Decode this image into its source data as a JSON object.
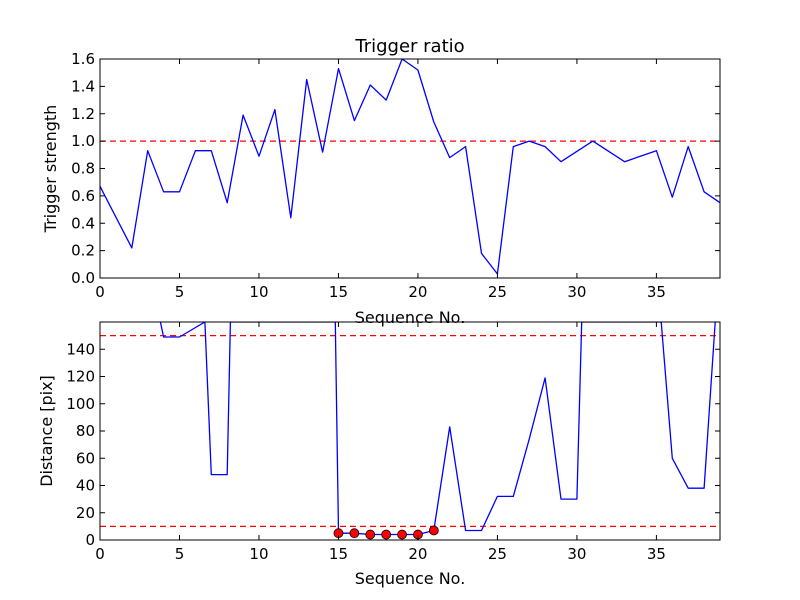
{
  "chart_data": [
    {
      "type": "line",
      "title": "Trigger ratio",
      "xlabel": "Sequence No.",
      "ylabel": "Trigger strength",
      "xlim": [
        0,
        39
      ],
      "ylim": [
        0.0,
        1.6
      ],
      "xticks": [
        0,
        5,
        10,
        15,
        20,
        25,
        30,
        35
      ],
      "xtick_labels": [
        "0",
        "5",
        "10",
        "15",
        "20",
        "25",
        "30",
        "35"
      ],
      "yticks": [
        0.0,
        0.2,
        0.4,
        0.6,
        0.8,
        1.0,
        1.2,
        1.4,
        1.6
      ],
      "ytick_labels": [
        "0.0",
        "0.2",
        "0.4",
        "0.6",
        "0.8",
        "1.0",
        "1.2",
        "1.4",
        "1.6"
      ],
      "series": [
        {
          "color": "#0000ff",
          "x": [
            0,
            2,
            3,
            4,
            5,
            6,
            7,
            8,
            9,
            10,
            11,
            12,
            13,
            14,
            15,
            16,
            17,
            18,
            19,
            20,
            21,
            22,
            23,
            24,
            25,
            26,
            27,
            28,
            29,
            31,
            33,
            35,
            36,
            37,
            38,
            39
          ],
          "y": [
            0.67,
            0.22,
            0.93,
            0.63,
            0.63,
            0.93,
            0.93,
            0.55,
            1.19,
            0.89,
            1.23,
            0.44,
            1.45,
            0.92,
            1.53,
            1.15,
            1.41,
            1.3,
            1.6,
            1.52,
            1.14,
            0.88,
            0.96,
            0.18,
            0.03,
            0.96,
            1.0,
            0.96,
            0.85,
            1.0,
            0.85,
            0.93,
            0.59,
            0.96,
            0.63,
            0.55
          ]
        }
      ],
      "reference_lines": [
        {
          "y": 1.0,
          "color": "#ff0000",
          "style": "dashed"
        }
      ]
    },
    {
      "type": "line",
      "title": "",
      "xlabel": "Sequence No.",
      "ylabel": "Distance [pix]",
      "xlim": [
        0,
        39
      ],
      "ylim": [
        0,
        160
      ],
      "xticks": [
        0,
        5,
        10,
        15,
        20,
        25,
        30,
        35
      ],
      "xtick_labels": [
        "0",
        "5",
        "10",
        "15",
        "20",
        "25",
        "30",
        "35"
      ],
      "yticks": [
        0,
        20,
        40,
        60,
        80,
        100,
        120,
        140
      ],
      "ytick_labels": [
        "0",
        "20",
        "40",
        "60",
        "80",
        "100",
        "120",
        "140"
      ],
      "series": [
        {
          "color": "#0000ff",
          "x": [
            3.8,
            4,
            5,
            6.6,
            7,
            8,
            8.2,
            14.8,
            15,
            16,
            17,
            18,
            19,
            20,
            21,
            22,
            23,
            24,
            25,
            26,
            27,
            28,
            29,
            30,
            30.3,
            35.3,
            36,
            37,
            38,
            38.7
          ],
          "y": [
            160,
            149,
            149,
            160,
            48,
            48,
            160,
            160,
            5,
            5,
            4,
            4,
            4,
            4,
            7,
            83,
            7,
            7,
            32,
            32,
            74,
            119,
            30,
            30,
            160,
            160,
            60,
            38,
            38,
            160
          ]
        },
        {
          "color": "#ff0000",
          "marker": "circle",
          "x": [
            15,
            16,
            17,
            18,
            19,
            20,
            21
          ],
          "y": [
            5,
            5,
            4,
            4,
            4,
            4,
            7
          ]
        }
      ],
      "reference_lines": [
        {
          "y": 10,
          "color": "#ff0000",
          "style": "dashed"
        },
        {
          "y": 150,
          "color": "#ff0000",
          "style": "dashed"
        }
      ]
    }
  ]
}
